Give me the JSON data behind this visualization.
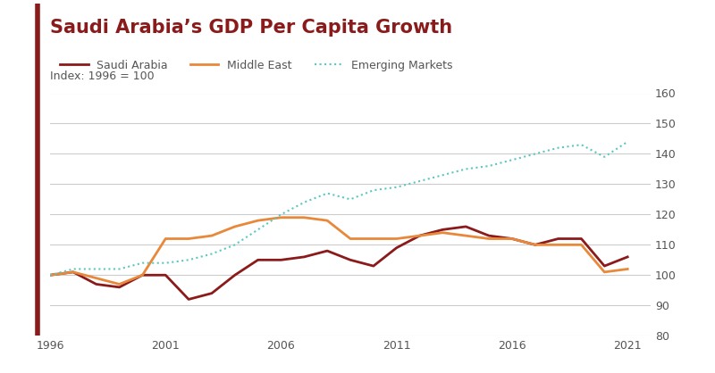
{
  "title": "Saudi Arabia’s GDP Per Capita Growth",
  "subtitle": "Index: 1996 = 100",
  "title_color": "#8B1A1A",
  "years": [
    1996,
    1997,
    1998,
    1999,
    2000,
    2001,
    2002,
    2003,
    2004,
    2005,
    2006,
    2007,
    2008,
    2009,
    2010,
    2011,
    2012,
    2013,
    2014,
    2015,
    2016,
    2017,
    2018,
    2019,
    2020,
    2021
  ],
  "saudi_arabia": [
    100,
    101,
    97,
    96,
    100,
    100,
    92,
    94,
    100,
    105,
    105,
    106,
    108,
    105,
    103,
    109,
    113,
    115,
    116,
    113,
    112,
    110,
    112,
    112,
    103,
    106
  ],
  "middle_east": [
    100,
    101,
    99,
    97,
    100,
    112,
    112,
    113,
    116,
    118,
    119,
    119,
    118,
    112,
    112,
    112,
    113,
    114,
    113,
    112,
    112,
    110,
    110,
    110,
    101,
    102
  ],
  "emerging_markets": [
    100,
    102,
    102,
    102,
    104,
    104,
    105,
    107,
    110,
    115,
    120,
    124,
    127,
    125,
    128,
    129,
    131,
    133,
    135,
    136,
    138,
    140,
    142,
    143,
    139,
    144
  ],
  "saudi_color": "#8B1A1A",
  "middle_east_color": "#E8883A",
  "emerging_color": "#5BC8C0",
  "ylim": [
    80,
    160
  ],
  "yticks": [
    80,
    90,
    100,
    110,
    120,
    130,
    140,
    150,
    160
  ],
  "xlim": [
    1996,
    2022
  ],
  "xticks": [
    1996,
    2001,
    2006,
    2011,
    2016,
    2021
  ],
  "bg_color": "#FFFFFF",
  "grid_color": "#CCCCCC",
  "left_bar_color": "#8B1A1A"
}
